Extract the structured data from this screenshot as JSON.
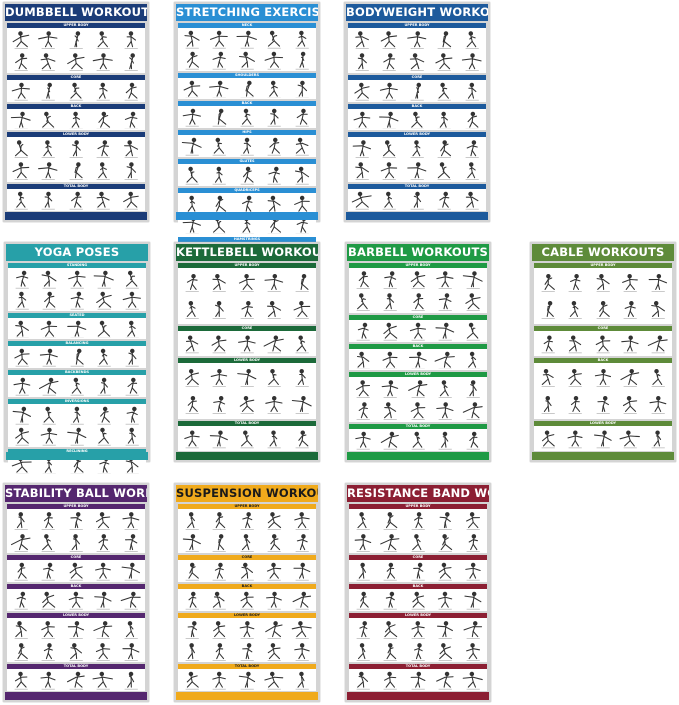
{
  "posters": [
    {
      "title": "DUMBBELL WORKOUTS",
      "color": "#1b3c78",
      "title_text_color": "#ffffff",
      "sections": [
        "UPPER BODY",
        "CORE",
        "BACK",
        "LOWER BODY",
        "TOTAL BODY"
      ]
    },
    {
      "title": "STRETCHING EXERCISES",
      "color": "#2a8fd4",
      "title_text_color": "#ffffff",
      "sections": [
        "NECK",
        "SHOULDERS",
        "BACK",
        "HIPS",
        "GLUTES",
        "QUADRICEPS",
        "HAMSTRINGS"
      ]
    },
    {
      "title": "BODYWEIGHT WORKOUTS",
      "color": "#1d5a9c",
      "title_text_color": "#ffffff",
      "sections": [
        "UPPER BODY",
        "CORE",
        "BACK",
        "LOWER BODY",
        "TOTAL BODY"
      ]
    },
    {
      "title": "YOGA POSES",
      "color": "#27a0a8",
      "title_text_color": "#ffffff",
      "sections": [
        "STANDING",
        "SEATED",
        "BALANCING",
        "BACKBENDS",
        "INVERSIONS",
        "RECLINING"
      ]
    },
    {
      "title": "KETTLEBELL WORKOUTS",
      "color": "#1c6a3a",
      "title_text_color": "#ffffff",
      "sections": [
        "UPPER BODY",
        "CORE",
        "LOWER BODY",
        "TOTAL BODY"
      ]
    },
    {
      "title": "BARBELL WORKOUTS",
      "color": "#1f9a45",
      "title_text_color": "#ffffff",
      "sections": [
        "UPPER BODY",
        "CORE",
        "BACK",
        "LOWER BODY",
        "TOTAL BODY"
      ]
    },
    {
      "title": "CABLE WORKOUTS",
      "color": "#5e8b3a",
      "title_text_color": "#ffffff",
      "sections": [
        "UPPER BODY",
        "CORE",
        "BACK",
        "LOWER BODY"
      ]
    },
    {
      "title": "STABILITY BALL WORKOUTS",
      "color": "#55276f",
      "title_text_color": "#ffffff",
      "sections": [
        "UPPER BODY",
        "CORE",
        "BACK",
        "LOWER BODY",
        "TOTAL BODY"
      ]
    },
    {
      "title": "SUSPENSION WORKOUTS",
      "color": "#f0aa1c",
      "title_text_color": "#1a1a1a",
      "sections": [
        "UPPER BODY",
        "CORE",
        "BACK",
        "LOWER BODY",
        "TOTAL BODY"
      ]
    },
    {
      "title": "RESISTANCE BAND WORKOUTS",
      "color": "#8c1f33",
      "title_text_color": "#ffffff",
      "sections": [
        "UPPER BODY",
        "CORE",
        "BACK",
        "LOWER BODY",
        "TOTAL BODY"
      ]
    }
  ]
}
